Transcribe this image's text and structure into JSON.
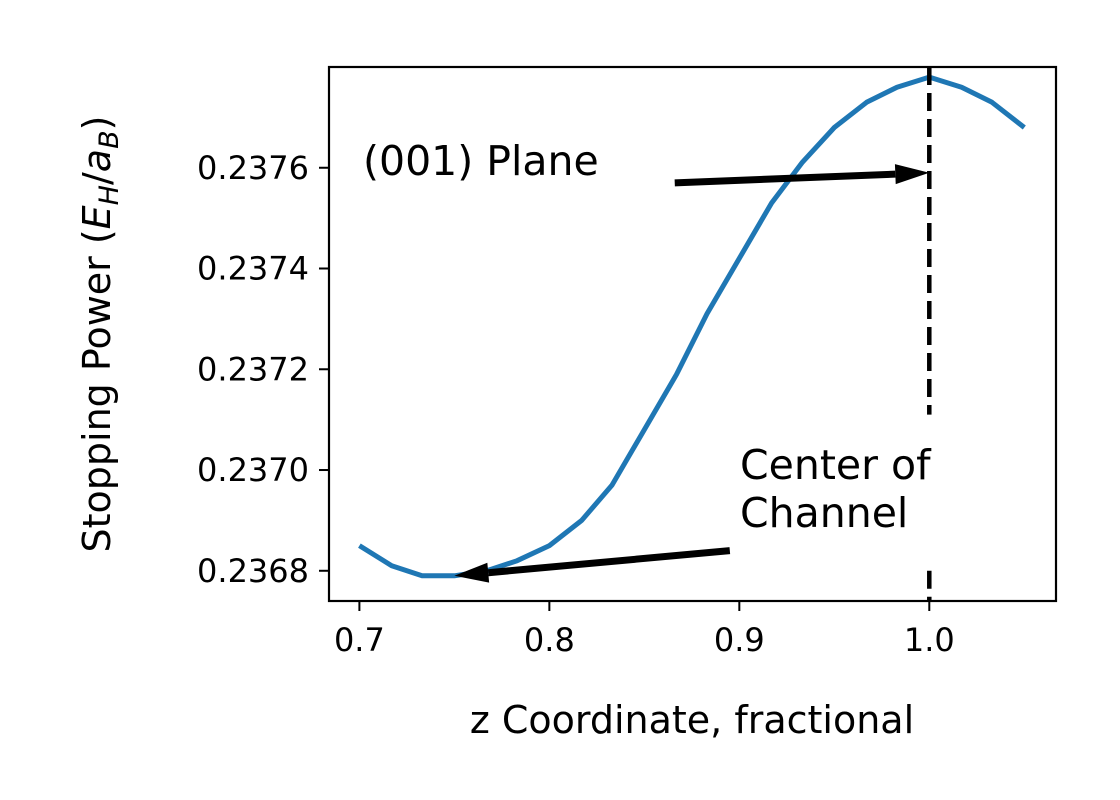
{
  "chart_data": {
    "type": "line",
    "xlabel": "z Coordinate, fractional",
    "ylabel": "Stopping Power (E_H/a_B)",
    "ylabel_parts": {
      "prefix": "Stopping Power (",
      "e": "E",
      "e_sub": "H",
      "slash": "/",
      "a": "a",
      "a_sub": "B",
      "suffix": ")"
    },
    "xlim": [
      0.684,
      1.0667
    ],
    "ylim": [
      0.23674,
      0.2378
    ],
    "x_ticks": [
      0.7,
      0.8,
      0.9,
      1.0
    ],
    "x_tick_labels": [
      "0.7",
      "0.8",
      "0.9",
      "1.0"
    ],
    "y_ticks": [
      0.2368,
      0.237,
      0.2372,
      0.2374,
      0.2376
    ],
    "y_tick_labels": [
      "0.2368",
      "0.2370",
      "0.2372",
      "0.2374",
      "0.2376"
    ],
    "grid": false,
    "series": [
      {
        "color": "#1f77b4",
        "x": [
          0.7,
          0.717,
          0.733,
          0.75,
          0.767,
          0.783,
          0.8,
          0.817,
          0.833,
          0.85,
          0.867,
          0.883,
          0.9,
          0.917,
          0.933,
          0.95,
          0.967,
          0.983,
          1.0,
          1.017,
          1.033,
          1.05
        ],
        "y": [
          0.23685,
          0.23681,
          0.23679,
          0.23679,
          0.2368,
          0.23682,
          0.23685,
          0.2369,
          0.23697,
          0.23708,
          0.23719,
          0.23731,
          0.23742,
          0.23753,
          0.23761,
          0.23768,
          0.23773,
          0.23776,
          0.23778,
          0.23776,
          0.23773,
          0.23768
        ]
      }
    ],
    "vline": {
      "x": 1.0,
      "style": "dashed",
      "color": "#000000",
      "y_segments": [
        [
          0.23674,
          0.2368
        ],
        [
          0.23711,
          0.2378
        ]
      ]
    },
    "annotations": [
      {
        "text": "(001) Plane",
        "lines": [
          "(001) Plane"
        ],
        "arrow_from": [
          0.866,
          0.23757
        ],
        "arrow_to": [
          1.0,
          0.23759
        ]
      },
      {
        "text": "Center of Channel",
        "lines": [
          "Center of",
          "Channel"
        ],
        "arrow_from": [
          0.895,
          0.23684
        ],
        "arrow_to": [
          0.75,
          0.23679
        ]
      }
    ]
  }
}
